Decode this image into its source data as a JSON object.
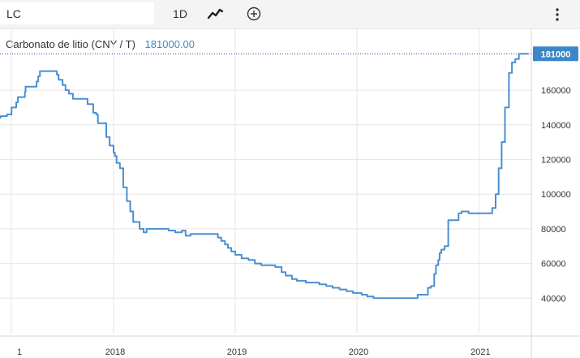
{
  "toolbar": {
    "symbol_value": "LC",
    "interval_label": "1D",
    "chart_type_icon": "line-chart-icon",
    "compare_icon": "plus-circle-icon",
    "menu_icon": "vertical-dots-icon"
  },
  "legend": {
    "label": "Carbonato de litio (CNY / T)",
    "value": "181000.00"
  },
  "colors": {
    "line": "#4a8fd1",
    "last_price_badge": "#3c86c9",
    "grid": "#e6e6e6",
    "axis_text": "#333333"
  },
  "chart_data": {
    "type": "line",
    "title": "",
    "series": [
      {
        "name": "Carbonato de litio (CNY / T)",
        "x": [
          "2017-01-01",
          "2017-01-08",
          "2017-01-10",
          "2017-01-27",
          "2017-02-01",
          "2017-02-15",
          "2017-02-18",
          "2017-03-01",
          "2017-03-15",
          "2017-03-20",
          "2017-04-01",
          "2017-04-10",
          "2017-04-12",
          "2017-05-15",
          "2017-05-20",
          "2017-05-25",
          "2017-06-01",
          "2017-06-10",
          "2017-06-15",
          "2017-07-15",
          "2017-07-20",
          "2017-08-01",
          "2017-08-10",
          "2017-08-20",
          "2017-09-01",
          "2017-09-10",
          "2017-09-15",
          "2017-10-01",
          "2017-10-15",
          "2017-11-01",
          "2017-11-10",
          "2017-11-15",
          "2017-11-20",
          "2017-12-01",
          "2017-12-10",
          "2017-12-20",
          "2018-01-01",
          "2018-01-05",
          "2018-01-10",
          "2018-01-20",
          "2018-01-30",
          "2018-02-10",
          "2018-02-20",
          "2018-03-01",
          "2018-03-10",
          "2018-03-20",
          "2018-04-01",
          "2018-04-10",
          "2018-04-20",
          "2018-05-01",
          "2018-05-20",
          "2018-06-01",
          "2018-06-15",
          "2018-06-25",
          "2018-07-05",
          "2018-07-15",
          "2018-07-25",
          "2018-08-05",
          "2018-08-20",
          "2018-09-05",
          "2018-09-20",
          "2018-10-01",
          "2018-10-20",
          "2018-11-10",
          "2018-11-20",
          "2018-12-01",
          "2018-12-10",
          "2018-12-20",
          "2019-01-01",
          "2019-01-20",
          "2019-02-10",
          "2019-03-01",
          "2019-03-20",
          "2019-04-10",
          "2019-05-01",
          "2019-05-20",
          "2019-06-01",
          "2019-06-20",
          "2019-07-05",
          "2019-07-20",
          "2019-08-01",
          "2019-08-20",
          "2019-09-10",
          "2019-10-01",
          "2019-10-20",
          "2019-11-10",
          "2019-12-01",
          "2019-12-20",
          "2020-01-01",
          "2020-01-15",
          "2020-02-01",
          "2020-02-20",
          "2020-03-10",
          "2020-04-01",
          "2020-04-20",
          "2020-05-10",
          "2020-06-01",
          "2020-06-20",
          "2020-07-01",
          "2020-07-15",
          "2020-08-01",
          "2020-08-10",
          "2020-08-20",
          "2020-08-25",
          "2020-09-01",
          "2020-09-05",
          "2020-09-10",
          "2020-09-20",
          "2020-10-01",
          "2020-10-15",
          "2020-11-01",
          "2020-11-10",
          "2020-12-01",
          "2021-01-01",
          "2021-02-01",
          "2021-02-10",
          "2021-02-20",
          "2021-03-01",
          "2021-03-10",
          "2021-03-20",
          "2021-04-01",
          "2021-04-10",
          "2021-04-20",
          "2021-05-01",
          "2021-05-10",
          "2021-05-20",
          "2021-05-30"
        ],
        "y": [
          140000,
          144000,
          144000,
          145000,
          145000,
          146000,
          146000,
          150000,
          153000,
          156000,
          156000,
          159000,
          162000,
          165000,
          168000,
          171000,
          171000,
          171000,
          171000,
          169000,
          166000,
          163000,
          160000,
          158000,
          155000,
          155000,
          155000,
          155000,
          152000,
          147000,
          146000,
          141000,
          141000,
          141000,
          133000,
          128000,
          124000,
          122000,
          118000,
          115000,
          104000,
          96000,
          90000,
          84000,
          84000,
          80000,
          78000,
          80000,
          80000,
          80000,
          80000,
          80000,
          79000,
          79000,
          78000,
          78000,
          79000,
          76000,
          77000,
          77000,
          77000,
          77000,
          77000,
          75000,
          73000,
          71000,
          69000,
          67000,
          65000,
          63000,
          62000,
          60000,
          59000,
          59000,
          58000,
          55000,
          53000,
          51000,
          50000,
          50000,
          49000,
          49000,
          48000,
          47000,
          46000,
          45000,
          44000,
          43000,
          43000,
          42000,
          41000,
          40000,
          40000,
          40000,
          40000,
          40000,
          40000,
          40000,
          42000,
          42000,
          46000,
          47000,
          54000,
          59000,
          62000,
          66000,
          68000,
          70000,
          85000,
          85000,
          89000,
          90000,
          89000,
          89000,
          89000,
          92000,
          100000,
          115000,
          130000,
          150000,
          170000,
          176000,
          178000,
          181000,
          181000,
          181000,
          181000
        ],
        "color": "#4a8fd1"
      }
    ],
    "x_ticks": [
      "1",
      "2018",
      "2019",
      "2020",
      "2021"
    ],
    "y_ticks": [
      "40000",
      "60000",
      "80000",
      "100000",
      "120000",
      "140000",
      "160000"
    ],
    "ylim": [
      20000,
      190000
    ],
    "xlim": [
      "2017-01-01",
      "2021-05-30"
    ],
    "last_price": "181000",
    "grid": true,
    "legend_position": "top-left"
  }
}
